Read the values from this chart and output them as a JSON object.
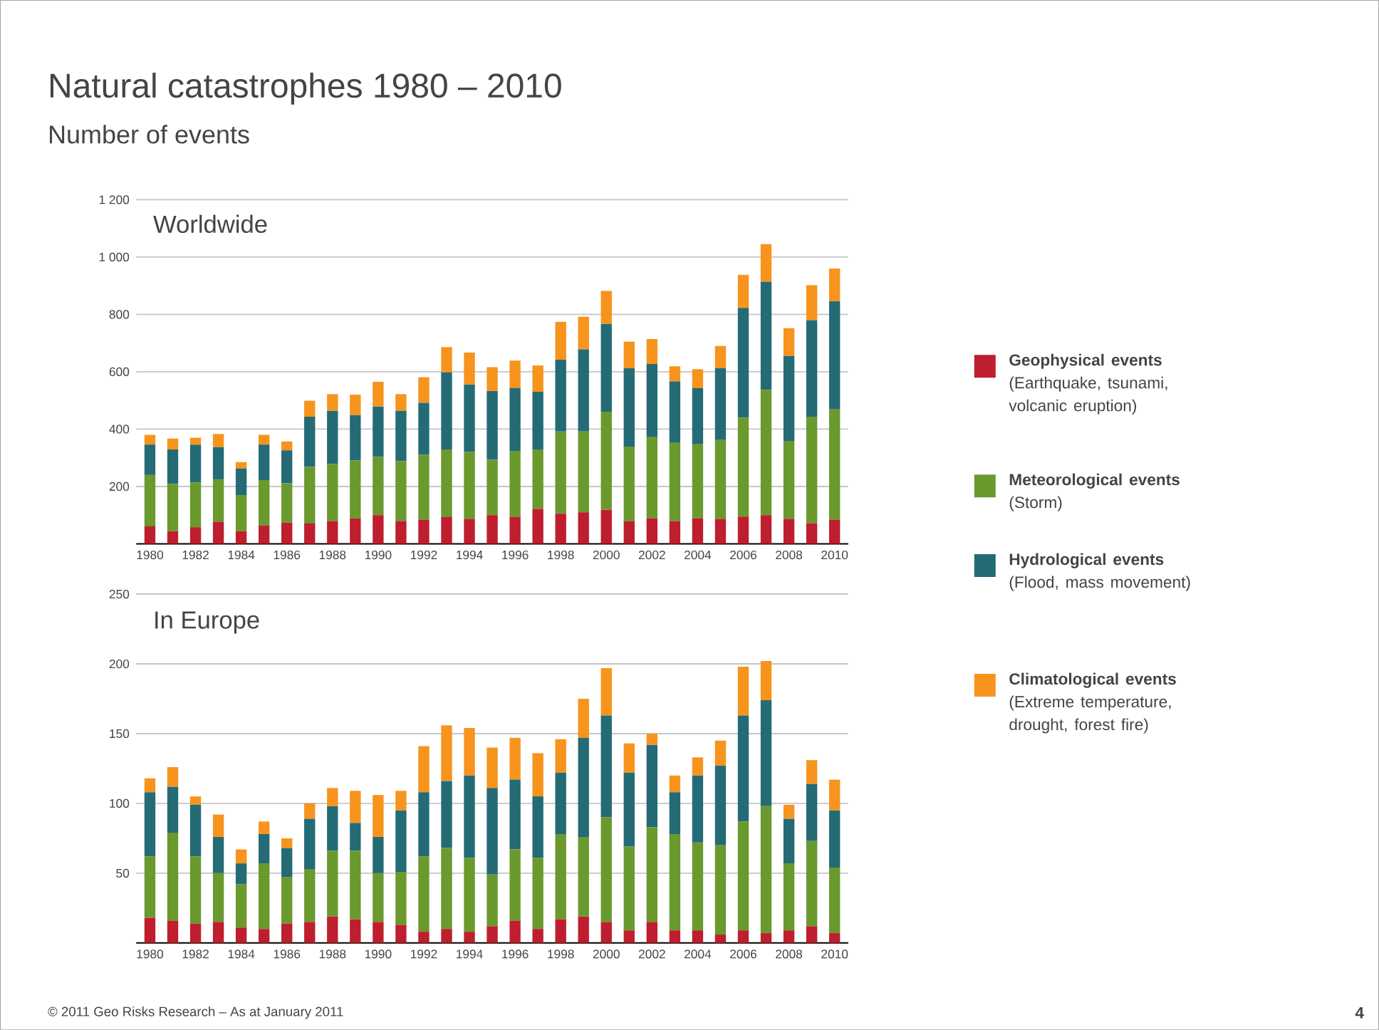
{
  "chart_data": [
    {
      "type": "bar",
      "title": "Natural catastrophes 1980 – 2010",
      "subtitle": "Number of events",
      "stacked": true,
      "grid": "y",
      "legend": "right",
      "annotations": [
        "Worldwide",
        "© 2011 Geo Risks Research – As at January 2011",
        "4"
      ],
      "categories": [
        "1980",
        null,
        "1982",
        null,
        "1984",
        null,
        "1986",
        null,
        "1988",
        null,
        "1990",
        null,
        "1992",
        null,
        "1994",
        null,
        "1996",
        null,
        "1998",
        null,
        "2000",
        null,
        "2002",
        null,
        "2004",
        null,
        "2006",
        null,
        "2008",
        null,
        "2010"
      ],
      "ylim": [
        0,
        1200
      ],
      "yticks": [
        200,
        400,
        600,
        800,
        {
          "value": 1000,
          "label": "1 000"
        },
        {
          "value": 1200,
          "label": "1 200"
        }
      ],
      "series": [
        {
          "name": "**Geophysical events** (Earthquake, tsunami, volcanic eruption)",
          "color": "#be1e2d",
          "values": [
            61,
            44,
            58,
            77,
            44,
            64,
            74,
            71,
            79,
            89,
            100,
            79,
            84,
            94,
            87,
            100,
            94,
            122,
            105,
            110,
            119,
            79,
            89,
            79,
            89,
            87,
            95,
            100,
            87,
            72,
            84
          ]
        },
        {
          "name": "**Meteorological events** (Storm)",
          "color": "#6a992e",
          "values": [
            179,
            165,
            156,
            148,
            126,
            158,
            137,
            197,
            199,
            202,
            203,
            209,
            227,
            235,
            234,
            193,
            230,
            207,
            287,
            282,
            342,
            260,
            285,
            273,
            258,
            275,
            345,
            437,
            272,
            371,
            385
          ]
        },
        {
          "name": "**Hydrological events** (Flood, mass movement)",
          "color": "#246b76",
          "values": [
            106,
            120,
            132,
            112,
            93,
            124,
            115,
            175,
            186,
            158,
            176,
            176,
            181,
            269,
            235,
            240,
            219,
            201,
            250,
            286,
            306,
            273,
            253,
            214,
            196,
            250,
            383,
            377,
            296,
            337,
            377
          ]
        },
        {
          "name": "**Climatological events** (Extreme temperature, drought, forest fire)",
          "color": "#f7941d",
          "values": [
            34,
            38,
            24,
            46,
            22,
            34,
            31,
            56,
            58,
            71,
            86,
            58,
            89,
            88,
            111,
            83,
            96,
            92,
            132,
            114,
            115,
            93,
            87,
            53,
            66,
            78,
            115,
            131,
            97,
            122,
            114
          ]
        }
      ]
    },
    {
      "type": "bar",
      "title": "In Europe",
      "stacked": true,
      "grid": "y",
      "categories": [
        "1980",
        null,
        "1982",
        null,
        "1984",
        null,
        "1986",
        null,
        "1988",
        null,
        "1990",
        null,
        "1992",
        null,
        "1994",
        null,
        "1996",
        null,
        "1998",
        null,
        "2000",
        null,
        "2002",
        null,
        "2004",
        null,
        "2006",
        null,
        "2008",
        null,
        "2010"
      ],
      "ylim": [
        0,
        250
      ],
      "yticks": [
        50,
        100,
        150,
        200,
        250
      ],
      "series": [
        {
          "color": "#be1e2d",
          "values": [
            18,
            16,
            14,
            15,
            11,
            10,
            14,
            15,
            19,
            17,
            15,
            13,
            8,
            10,
            8,
            12,
            16,
            10,
            17,
            19,
            15,
            9,
            15,
            9,
            9,
            6,
            9,
            7,
            9,
            12,
            7
          ]
        },
        {
          "color": "#6a992e",
          "values": [
            44,
            63,
            48,
            35,
            31,
            47,
            33,
            38,
            47,
            49,
            35,
            38,
            54,
            58,
            53,
            37,
            51,
            51,
            61,
            57,
            75,
            60,
            68,
            69,
            63,
            64,
            78,
            91,
            48,
            61,
            47
          ]
        },
        {
          "color": "#246b76",
          "values": [
            46,
            33,
            37,
            26,
            15,
            21,
            21,
            36,
            32,
            20,
            26,
            44,
            46,
            48,
            59,
            62,
            50,
            44,
            44,
            71,
            73,
            53,
            59,
            30,
            48,
            57,
            76,
            76,
            32,
            41,
            41
          ]
        },
        {
          "color": "#f7941d",
          "values": [
            10,
            14,
            6,
            16,
            10,
            9,
            7,
            11,
            13,
            23,
            30,
            14,
            33,
            40,
            34,
            29,
            30,
            31,
            24,
            28,
            34,
            21,
            8,
            12,
            13,
            18,
            35,
            28,
            10,
            17,
            22
          ]
        }
      ]
    }
  ]
}
